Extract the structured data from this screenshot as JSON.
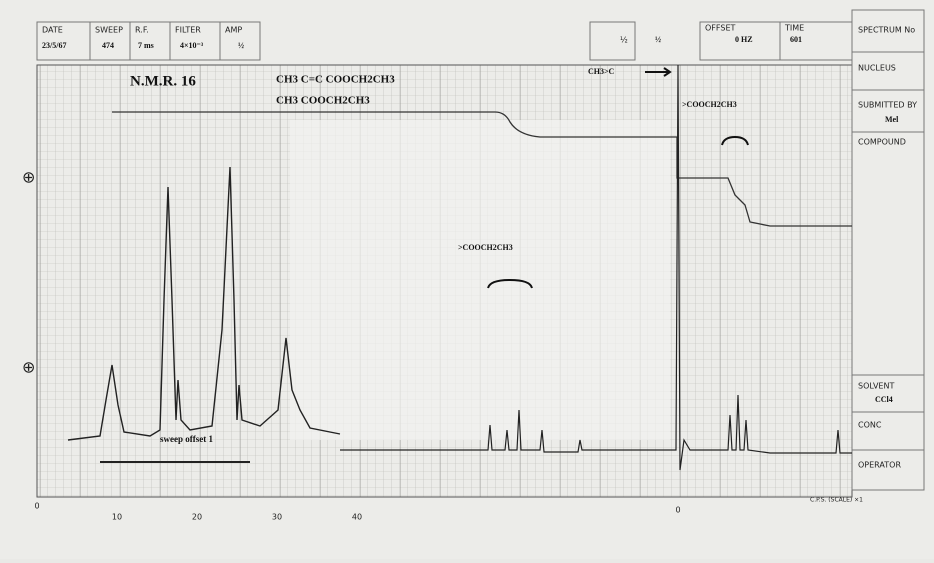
{
  "header": {
    "fields": [
      {
        "label": "DATE",
        "value": "23/5/67"
      },
      {
        "label": "SWEEP",
        "value": "474"
      },
      {
        "label": "R.F.",
        "value": "7 ms"
      },
      {
        "label": "FILTER",
        "value": "4×10⁻³"
      },
      {
        "label": "AMP",
        "value": "½"
      }
    ],
    "right": [
      {
        "label": "½",
        "value": "½"
      },
      {
        "label": "OFFSET",
        "value": "0 HZ"
      },
      {
        "label": "TIME",
        "value": "601"
      }
    ]
  },
  "panel": {
    "spectrum": "SPECTRUM No",
    "nucleus": "NUCLEUS",
    "submitted": "SUBMITTED BY",
    "submitted_value": "Mel",
    "compound": "COMPOUND",
    "solvent": "SOLVENT",
    "solvent_value": "CCl4",
    "conc": "CONC",
    "operator": "OPERATOR"
  },
  "annotations": {
    "title": "N.M.R. 16",
    "formula_top": "CH3   C=C  COOCH2CH3",
    "formula_bottom": "CH3          COOCH2CH3",
    "sweep": "sweep offset 1",
    "group_mid": ">COOCH2CH3",
    "group_right": ">COOCH2CH3",
    "group_left": "CH3>C"
  },
  "axis": {
    "labels": [
      "0",
      "10",
      "20",
      "30",
      "40"
    ],
    "zero": "0",
    "scale": "C.P.S. (SCALE) ×1"
  }
}
